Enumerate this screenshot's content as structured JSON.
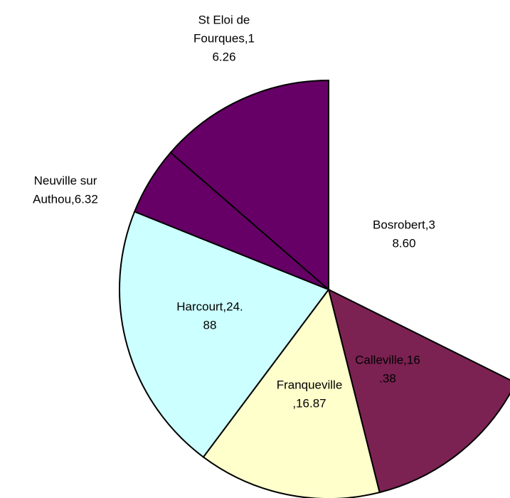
{
  "chart_data": {
    "type": "pie",
    "values": [
      38.6,
      16.38,
      16.87,
      24.88,
      6.32,
      16.26
    ],
    "value_labels": [
      [
        "Bosrobert,3",
        "8.60"
      ],
      [
        "Calleville,16",
        ".38"
      ],
      [
        "Franqueville",
        ",16.87"
      ],
      [
        "Harcourt,24.",
        "88"
      ],
      [
        "Neuville sur",
        "Authou,6.32"
      ],
      [
        "St Eloi de",
        "Fourques,1",
        "6.26"
      ]
    ],
    "colors": [
      "none",
      "#7b2252",
      "#ffffcc",
      "#ccffff",
      "#660066",
      "#660066"
    ],
    "start_angle": 0,
    "direction": "clockwise"
  }
}
